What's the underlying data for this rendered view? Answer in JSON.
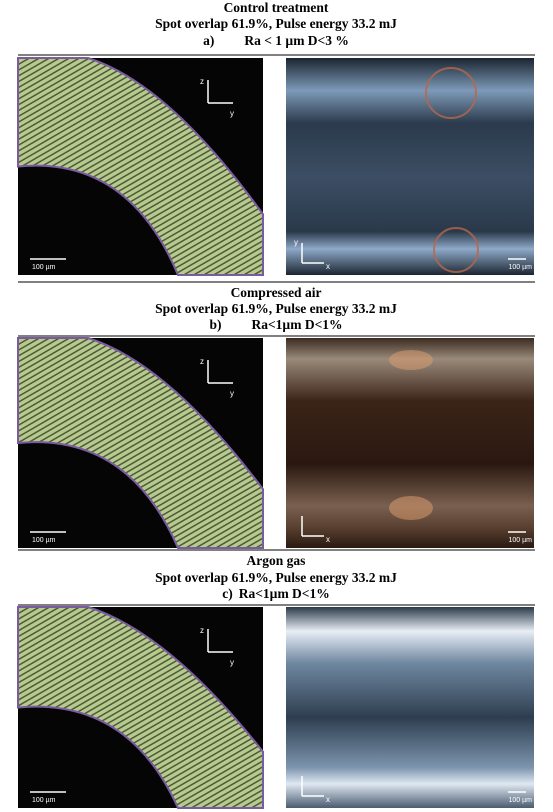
{
  "panels": [
    {
      "title": "Control treatment",
      "subtitle": "Spot overlap 61.9%, Pulse energy 33.2 mJ",
      "letter": "a)",
      "label": "Ra < 1 µm D<3 %",
      "left": {
        "axis_up": "z",
        "axis_right": "y",
        "scale": "100 µm"
      },
      "right": {
        "axis_up": "y",
        "axis_right": "x",
        "scale": "100 µm"
      }
    },
    {
      "title": "Compressed air",
      "subtitle": "Spot overlap 61.9%, Pulse energy 33.2 mJ",
      "letter": "b)",
      "label": "Ra<1µm D<1%",
      "left": {
        "axis_up": "z",
        "axis_right": "y",
        "scale": "100 µm"
      },
      "right": {
        "axis_right": "x",
        "scale": "100 µm"
      }
    },
    {
      "title": "Argon gas",
      "subtitle": "Spot overlap 61.9%, Pulse energy 33.2 mJ",
      "letter": "c)",
      "label": "Ra<1µm D<1%",
      "left": {
        "axis_up": "z",
        "axis_right": "y",
        "scale": "100 µm"
      },
      "right": {
        "axis_right": "x",
        "scale": "100 µm"
      }
    }
  ]
}
